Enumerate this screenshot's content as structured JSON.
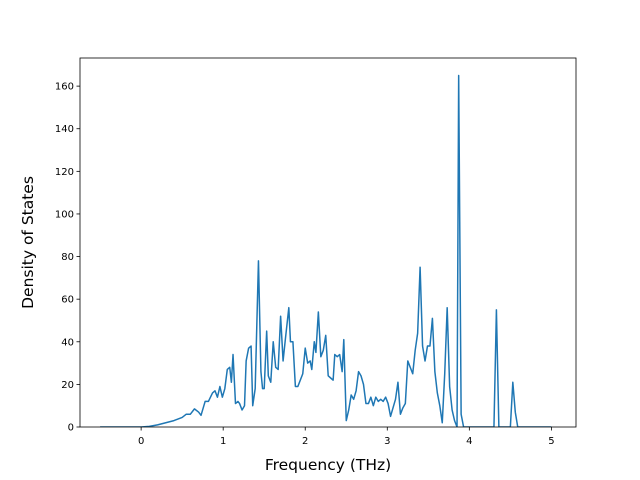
{
  "chart_data": {
    "type": "line",
    "xlabel": "Frequency (THz)",
    "ylabel": "Density of States",
    "color": "#1f77b4",
    "xlim": [
      -0.745,
      5.3
    ],
    "ylim": [
      0,
      173.2
    ],
    "xticks": [
      0,
      1,
      2,
      3,
      4,
      5
    ],
    "yticks": [
      0,
      20,
      40,
      60,
      80,
      100,
      120,
      140,
      160
    ],
    "x": [
      -0.5,
      0,
      0.1,
      0.2,
      0.3,
      0.4,
      0.5,
      0.55,
      0.6,
      0.65,
      0.7,
      0.73,
      0.78,
      0.82,
      0.87,
      0.9,
      0.93,
      0.96,
      0.99,
      1.02,
      1.05,
      1.08,
      1.1,
      1.12,
      1.15,
      1.18,
      1.2,
      1.23,
      1.26,
      1.28,
      1.31,
      1.34,
      1.36,
      1.39,
      1.43,
      1.46,
      1.48,
      1.5,
      1.53,
      1.55,
      1.58,
      1.61,
      1.64,
      1.67,
      1.7,
      1.73,
      1.76,
      1.8,
      1.82,
      1.85,
      1.88,
      1.91,
      1.94,
      1.97,
      2.0,
      2.03,
      2.06,
      2.08,
      2.11,
      2.13,
      2.16,
      2.19,
      2.22,
      2.25,
      2.28,
      2.31,
      2.34,
      2.36,
      2.39,
      2.42,
      2.45,
      2.47,
      2.5,
      2.53,
      2.56,
      2.59,
      2.62,
      2.65,
      2.68,
      2.71,
      2.74,
      2.77,
      2.8,
      2.83,
      2.86,
      2.89,
      2.92,
      2.95,
      2.98,
      3.01,
      3.04,
      3.07,
      3.1,
      3.13,
      3.16,
      3.19,
      3.22,
      3.25,
      3.28,
      3.31,
      3.34,
      3.37,
      3.4,
      3.43,
      3.46,
      3.49,
      3.52,
      3.55,
      3.58,
      3.61,
      3.64,
      3.67,
      3.7,
      3.73,
      3.76,
      3.79,
      3.82,
      3.85,
      3.87,
      3.9,
      3.93,
      4.3,
      4.33,
      4.36,
      4.5,
      4.53,
      4.56,
      4.59,
      5.0
    ],
    "values": [
      0,
      0,
      0.3,
      1,
      2,
      3,
      4.5,
      6,
      6,
      8.5,
      7,
      5.5,
      12,
      12,
      16,
      17,
      14,
      19,
      14,
      18,
      27,
      28,
      21,
      34,
      11,
      12,
      11,
      8,
      10,
      31,
      37,
      38,
      10,
      18,
      78,
      26,
      18,
      18,
      45,
      24,
      21,
      40,
      28,
      27,
      52,
      31,
      42,
      56,
      40,
      40,
      19,
      19,
      22,
      25,
      37,
      30,
      31,
      27,
      40,
      35,
      54,
      33,
      36,
      43,
      24,
      23,
      22,
      34,
      33,
      34,
      26,
      41,
      3,
      8,
      15,
      13,
      17,
      26,
      24,
      20,
      11,
      11,
      14,
      10,
      14,
      12,
      13,
      12,
      14,
      11,
      5,
      9,
      13,
      21,
      6,
      9,
      11,
      31,
      28,
      25,
      36,
      44,
      75,
      38,
      31,
      38,
      38,
      51,
      26,
      16,
      10,
      2,
      25,
      56,
      19,
      8,
      3,
      0,
      165,
      6,
      0,
      0,
      55,
      0,
      0,
      21,
      7,
      0,
      0
    ]
  }
}
